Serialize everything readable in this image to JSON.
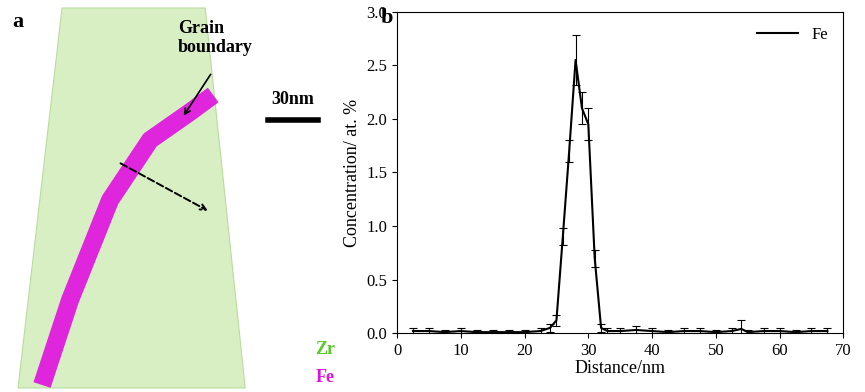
{
  "image_panel": {
    "panel_label": "a",
    "annotation": "Grain\nboundary",
    "scale_bar": "30nm",
    "species": [
      {
        "name": "Zr",
        "color": "#5cc92a"
      },
      {
        "name": "Fe",
        "color": "#e010e0"
      }
    ]
  },
  "chart_data": {
    "type": "line",
    "panel_label": "b",
    "x_label": "Distance/nm",
    "y_label": "Concentration/ at. %",
    "xlim": [
      0,
      70
    ],
    "xticks": [
      0,
      10,
      20,
      30,
      40,
      50,
      60,
      70
    ],
    "ylim": [
      0,
      3.0
    ],
    "yticks": [
      {
        "value": 0,
        "label": "0.0"
      },
      {
        "value": 0.5,
        "label": "0.5"
      },
      {
        "value": 1.0,
        "label": "1.0"
      },
      {
        "value": 1.5,
        "label": "1.5"
      },
      {
        "value": 2.0,
        "label": "2.0"
      },
      {
        "value": 2.5,
        "label": "2.5"
      },
      {
        "value": 3.0,
        "label": "3.0"
      }
    ],
    "legend": "upper right",
    "series": [
      {
        "name": "Fe",
        "color": "#000000",
        "x": [
          2.5,
          5,
          7.5,
          10,
          12.5,
          15,
          17.5,
          20,
          22.5,
          24,
          25,
          26,
          27,
          28,
          29,
          30,
          31,
          32,
          33,
          35,
          37.5,
          40,
          42.5,
          45,
          47.5,
          50,
          52.5,
          54,
          55,
          57.5,
          60,
          62.5,
          65,
          67.5
        ],
        "values": [
          0.02,
          0.02,
          0.01,
          0.02,
          0.01,
          0.01,
          0.01,
          0.01,
          0.02,
          0.05,
          0.12,
          0.9,
          1.7,
          2.55,
          2.1,
          1.95,
          0.7,
          0.05,
          0.02,
          0.02,
          0.03,
          0.02,
          0.01,
          0.02,
          0.02,
          0.01,
          0.02,
          0.04,
          0.01,
          0.02,
          0.02,
          0.01,
          0.02,
          0.02
        ],
        "errors": [
          0.03,
          0.03,
          0.02,
          0.03,
          0.02,
          0.02,
          0.02,
          0.02,
          0.03,
          0.04,
          0.05,
          0.08,
          0.1,
          0.23,
          0.15,
          0.15,
          0.08,
          0.04,
          0.03,
          0.03,
          0.04,
          0.03,
          0.02,
          0.03,
          0.03,
          0.02,
          0.03,
          0.08,
          0.02,
          0.03,
          0.03,
          0.02,
          0.03,
          0.03
        ]
      }
    ]
  }
}
